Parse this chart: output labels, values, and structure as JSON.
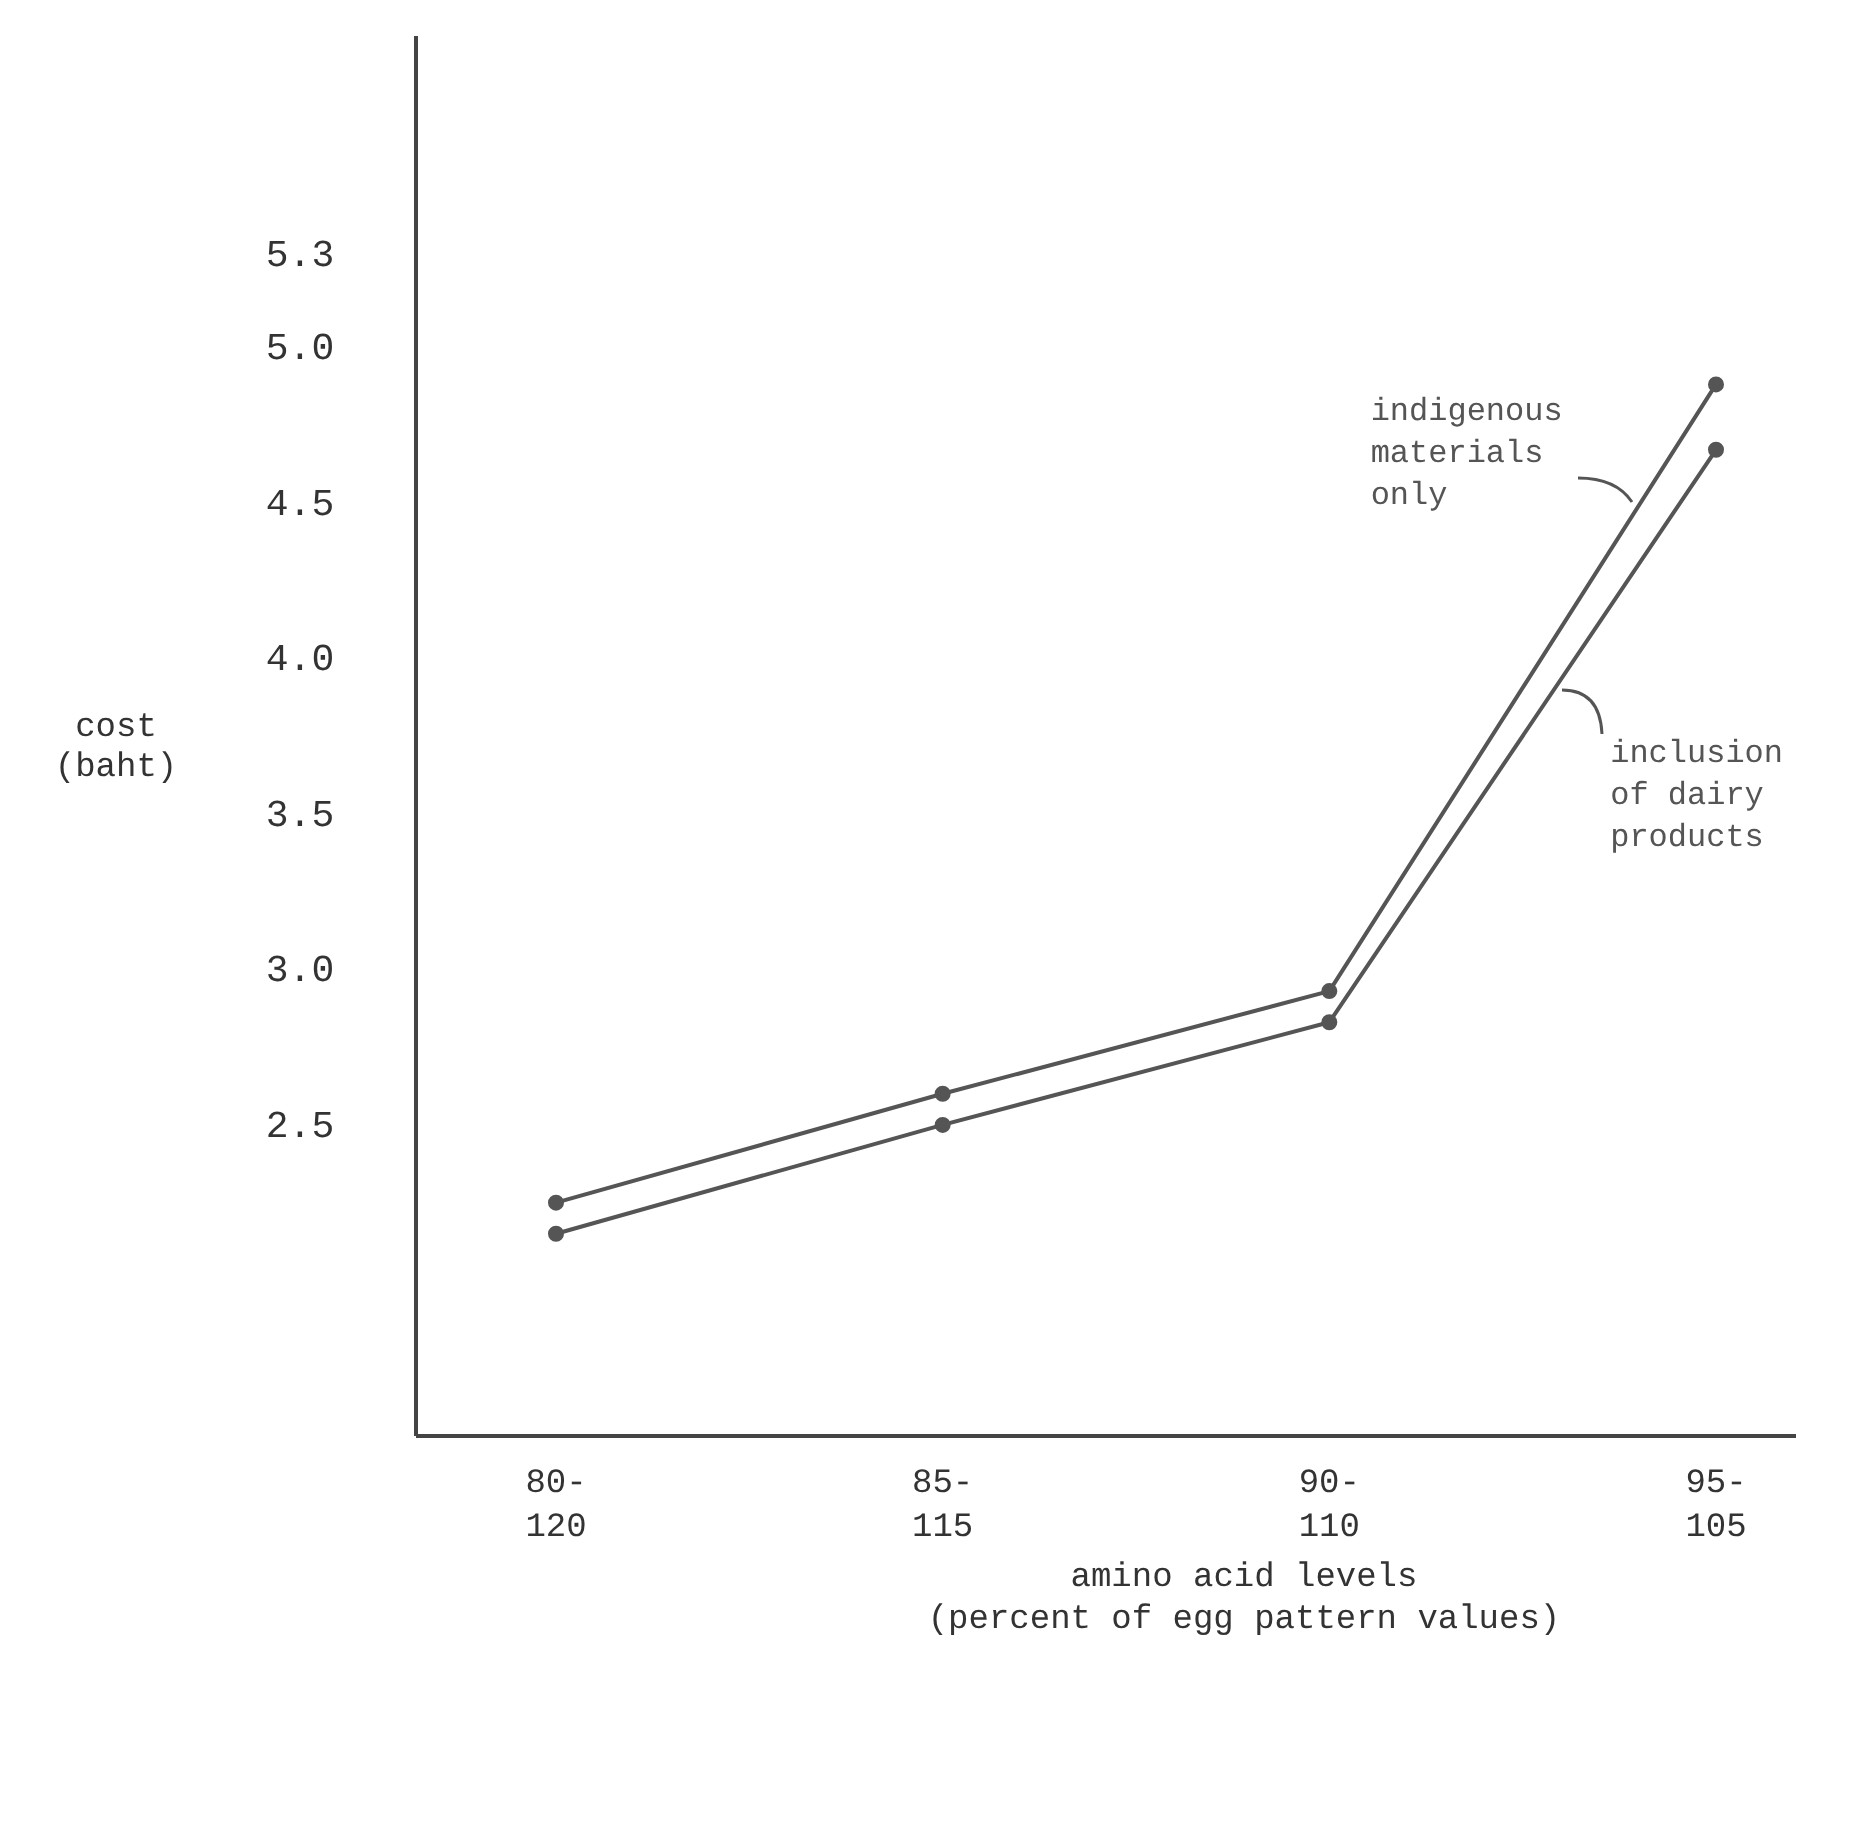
{
  "chart_data": {
    "type": "line",
    "xlabel": "amino acid levels\n(percent of egg pattern values)",
    "ylabel": "cost\n(baht)",
    "categories": [
      "80-120",
      "85-115",
      "90-110",
      "95-105"
    ],
    "series": [
      {
        "name": "indigenous materials only",
        "color": "#555555",
        "values": [
          2.25,
          2.6,
          2.93,
          4.88
        ]
      },
      {
        "name": "inclusion of dairy products",
        "color": "#555555",
        "values": [
          2.15,
          2.5,
          2.83,
          4.67
        ]
      }
    ],
    "ylim": [
      1.5,
      6.0
    ],
    "yticks": [
      2.5,
      {
        "value": 3,
        "label": "3.0"
      },
      3.5,
      {
        "value": 4,
        "label": "4.0"
      },
      4.5,
      {
        "value": 5,
        "label": "5.0"
      },
      5.3
    ],
    "marker": "circle",
    "line_style": "solid"
  }
}
